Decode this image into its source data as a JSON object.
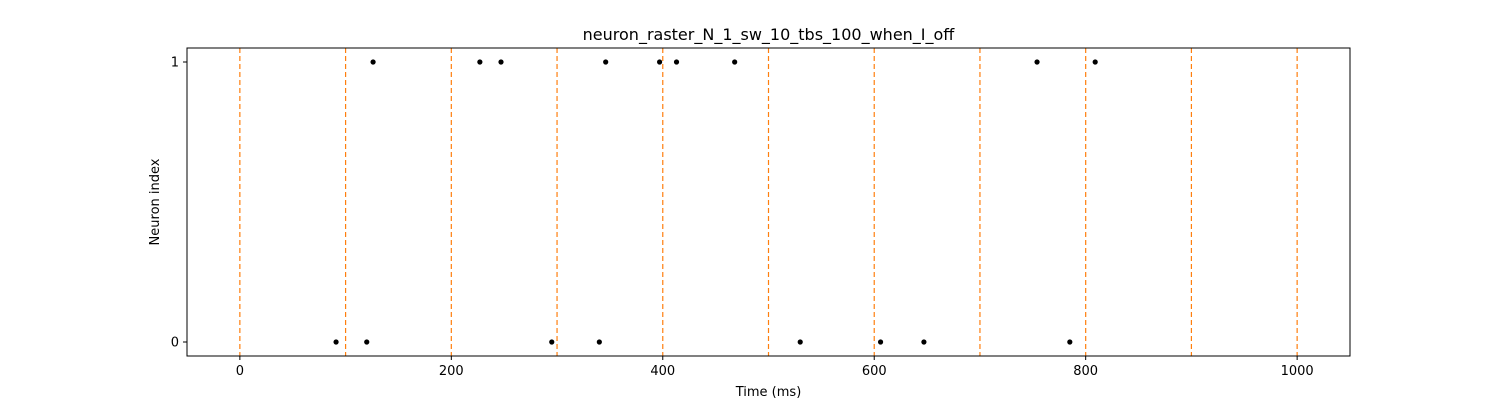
{
  "chart_data": {
    "type": "scatter",
    "title": "neuron_raster_N_1_sw_10_tbs_100_when_I_off",
    "xlabel": "Time (ms)",
    "ylabel": "Neuron index",
    "xlim": [
      -50,
      1050
    ],
    "ylim": [
      -0.05,
      1.05
    ],
    "x_ticks": [
      0,
      200,
      400,
      600,
      800,
      1000
    ],
    "x_tick_labels": [
      "0",
      "200",
      "400",
      "600",
      "800",
      "1000"
    ],
    "y_ticks": [
      0,
      1
    ],
    "y_tick_labels": [
      "0",
      "1"
    ],
    "grid": false,
    "legend": "none",
    "marker_color": "#000000",
    "vline_color": "#ff7f0e",
    "vlines_x": [
      0,
      100,
      200,
      300,
      400,
      500,
      600,
      700,
      800,
      900,
      1000
    ],
    "series": [
      {
        "values": [
          {
            "x": 91,
            "y": 0
          },
          {
            "x": 120,
            "y": 0
          },
          {
            "x": 295,
            "y": 0
          },
          {
            "x": 340,
            "y": 0
          },
          {
            "x": 530,
            "y": 0
          },
          {
            "x": 606,
            "y": 0
          },
          {
            "x": 647,
            "y": 0
          },
          {
            "x": 785,
            "y": 0
          },
          {
            "x": 126,
            "y": 1
          },
          {
            "x": 227,
            "y": 1
          },
          {
            "x": 247,
            "y": 1
          },
          {
            "x": 346,
            "y": 1
          },
          {
            "x": 397,
            "y": 1
          },
          {
            "x": 413,
            "y": 1
          },
          {
            "x": 468,
            "y": 1
          },
          {
            "x": 754,
            "y": 1
          },
          {
            "x": 809,
            "y": 1
          }
        ]
      }
    ]
  }
}
